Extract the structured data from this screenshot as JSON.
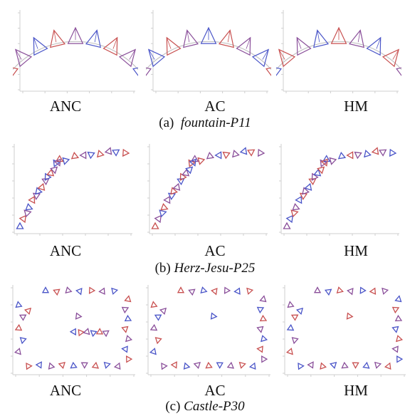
{
  "rows": [
    {
      "caption_prefix": "(a)",
      "caption_name": "fountain-P11",
      "methods": [
        "ANC",
        "AC",
        "HM"
      ]
    },
    {
      "caption_prefix": "(b)",
      "caption_name": "Herz-Jesu-P25",
      "methods": [
        "ANC",
        "AC",
        "HM"
      ]
    },
    {
      "caption_prefix": "(c)",
      "caption_name": "Castle-P30",
      "methods": [
        "ANC",
        "AC",
        "HM"
      ]
    }
  ],
  "colors": {
    "camera_blue": "#4a55c8",
    "camera_red": "#c85050",
    "camera_purple": "#8a4f9a",
    "axis": "#cfcfcf"
  }
}
